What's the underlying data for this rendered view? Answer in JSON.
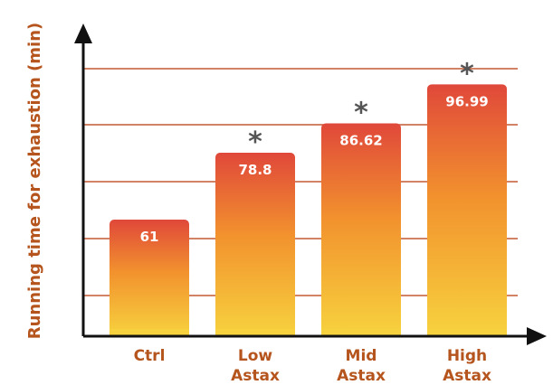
{
  "chart_data": {
    "type": "bar",
    "title": "",
    "xlabel": "",
    "ylabel": "Running time for exhaustion (min)",
    "categories": [
      "Ctrl",
      "Low\nAstax",
      "Mid\nAstax",
      "High\nAstax"
    ],
    "values": [
      61,
      78.8,
      86.62,
      96.99
    ],
    "value_labels": [
      "61",
      "78.8",
      "86.62",
      "96.99"
    ],
    "significance": [
      "",
      "*",
      "*",
      "*"
    ],
    "ylim": [
      30,
      105
    ],
    "grid": true,
    "colors": {
      "bar_top": "#e0483a",
      "bar_mid": "#f2922e",
      "bar_bottom": "#f7d23e",
      "gridline": "#c45a32",
      "axis": "#111111",
      "label": "#b5541c",
      "star": "#555555"
    }
  }
}
